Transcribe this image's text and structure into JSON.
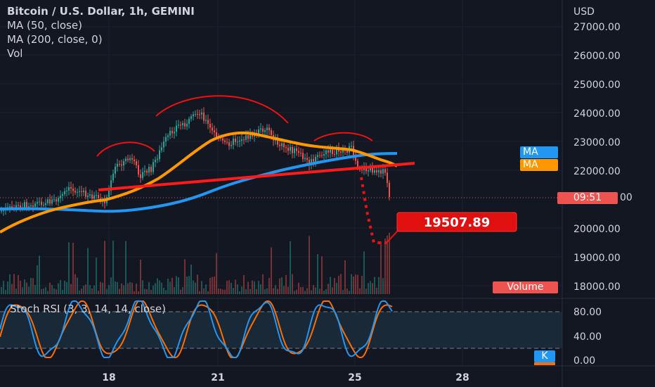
{
  "header": {
    "title": "Bitcoin / U.S. Dollar, 1h, GEMINI",
    "indicators": [
      "MA (50, close)",
      "MA (200, close, 0)",
      "Vol"
    ]
  },
  "price_axis": {
    "currency": "USD",
    "labels": [
      "27000.00",
      "26000.00",
      "25000.00",
      "24000.00",
      "23000.00",
      "22000.00",
      "20000.00",
      "19000.00",
      "18000.00"
    ]
  },
  "badges": {
    "ma_blue": "MA",
    "ma_orange": "MA",
    "countdown": "09:51",
    "countdown_suffix": "00",
    "volume": "Volume",
    "target_price": "19507.89"
  },
  "rsi": {
    "label": "Stoch RSI (3, 3, 14, 14, close)",
    "axis_labels": [
      "80.00",
      "40.00",
      "0.00"
    ],
    "k_badge": "K"
  },
  "time_axis": {
    "labels": [
      "18",
      "21",
      "25",
      "28"
    ]
  },
  "colors": {
    "background": "#131722",
    "up": "#26a69a",
    "down": "#ef5350",
    "ma_blue": "#2196f3",
    "ma_orange": "#ff9800",
    "annotation": "#ff0000",
    "rsi_k": "#2196f3",
    "rsi_d": "#ff6d00"
  }
}
